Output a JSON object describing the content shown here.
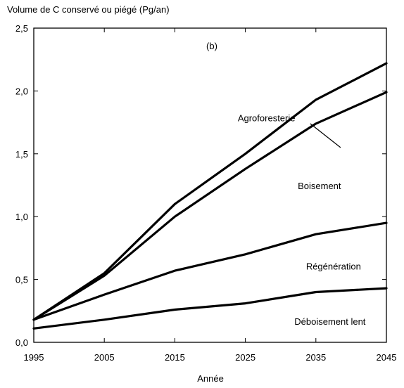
{
  "chart_data": {
    "type": "line",
    "title": "",
    "panel_label": "(b)",
    "ylabel": "Volume de C conservé ou piégé (Pg/an)",
    "xlabel": "Année",
    "x_ticks": [
      "1995",
      "2005",
      "2015",
      "2025",
      "2035",
      "2045"
    ],
    "y_ticks": [
      "0,0",
      "0,5",
      "1,0",
      "1,5",
      "2,0",
      "2,5"
    ],
    "xlim": [
      1995,
      2045
    ],
    "ylim": [
      0,
      2.5
    ],
    "grid": false,
    "line_color": "#000000",
    "series": [
      {
        "name": "Agroforesterie",
        "points": [
          [
            1995,
            0.18
          ],
          [
            2005,
            0.55
          ],
          [
            2015,
            1.1
          ],
          [
            2025,
            1.5
          ],
          [
            2035,
            1.93
          ],
          [
            2045,
            2.22
          ]
        ]
      },
      {
        "name": "Boisement",
        "points": [
          [
            1995,
            0.18
          ],
          [
            2005,
            0.53
          ],
          [
            2015,
            1.0
          ],
          [
            2025,
            1.38
          ],
          [
            2035,
            1.74
          ],
          [
            2045,
            1.99
          ]
        ]
      },
      {
        "name": "Régénération",
        "points": [
          [
            1995,
            0.18
          ],
          [
            2005,
            0.38
          ],
          [
            2015,
            0.57
          ],
          [
            2025,
            0.7
          ],
          [
            2035,
            0.86
          ],
          [
            2045,
            0.95
          ]
        ]
      },
      {
        "name": "Déboisement lent",
        "points": [
          [
            1995,
            0.11
          ],
          [
            2005,
            0.18
          ],
          [
            2015,
            0.26
          ],
          [
            2025,
            0.31
          ],
          [
            2035,
            0.4
          ],
          [
            2045,
            0.43
          ]
        ]
      }
    ]
  }
}
